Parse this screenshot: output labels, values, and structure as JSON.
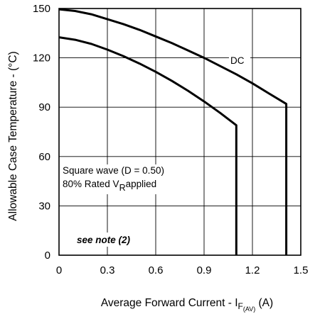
{
  "chart_data": {
    "type": "line",
    "title": "",
    "xlabel": {
      "prefix": "Average Forward Current - I",
      "subscript_f": "F",
      "subscript_av": "(AV)",
      "suffix": " (A)"
    },
    "ylabel": "Allowable Case Temperature - (°C)",
    "xlim": [
      0,
      1.5
    ],
    "ylim": [
      0,
      150
    ],
    "x_ticks": [
      0,
      0.3,
      0.6,
      0.9,
      1.2,
      1.5
    ],
    "x_tick_labels": [
      "0",
      "0.3",
      "0.6",
      "0.9",
      "1.2",
      "1.5"
    ],
    "y_ticks": [
      0,
      30,
      60,
      90,
      120,
      150
    ],
    "y_tick_labels": [
      "0",
      "30",
      "60",
      "90",
      "120",
      "150"
    ],
    "grid": true,
    "series": [
      {
        "name": "DC",
        "x": [
          0,
          0.1,
          0.2,
          0.3,
          0.4,
          0.5,
          0.6,
          0.7,
          0.8,
          0.9,
          1.0,
          1.1,
          1.2,
          1.3,
          1.41,
          1.41
        ],
        "y": [
          149.5,
          148.5,
          146.5,
          143.5,
          140.5,
          137,
          133,
          129,
          124.5,
          120,
          115,
          110,
          104.5,
          98.5,
          92,
          0
        ]
      },
      {
        "name": "Square wave",
        "x": [
          0,
          0.1,
          0.2,
          0.3,
          0.4,
          0.5,
          0.6,
          0.7,
          0.8,
          0.9,
          1.0,
          1.1,
          1.1
        ],
        "y": [
          132.5,
          131,
          128.5,
          125,
          121,
          116.5,
          111.5,
          106,
          100,
          93.5,
          86.5,
          79,
          0
        ]
      }
    ],
    "annotations": {
      "dc_label": "DC",
      "square_wave": "Square wave (D = 0.50)",
      "rated_prefix": "80% Rated V",
      "rated_sub": "R",
      "rated_suffix": "applied",
      "note": "see note (2)"
    },
    "line_color": "#000000"
  }
}
